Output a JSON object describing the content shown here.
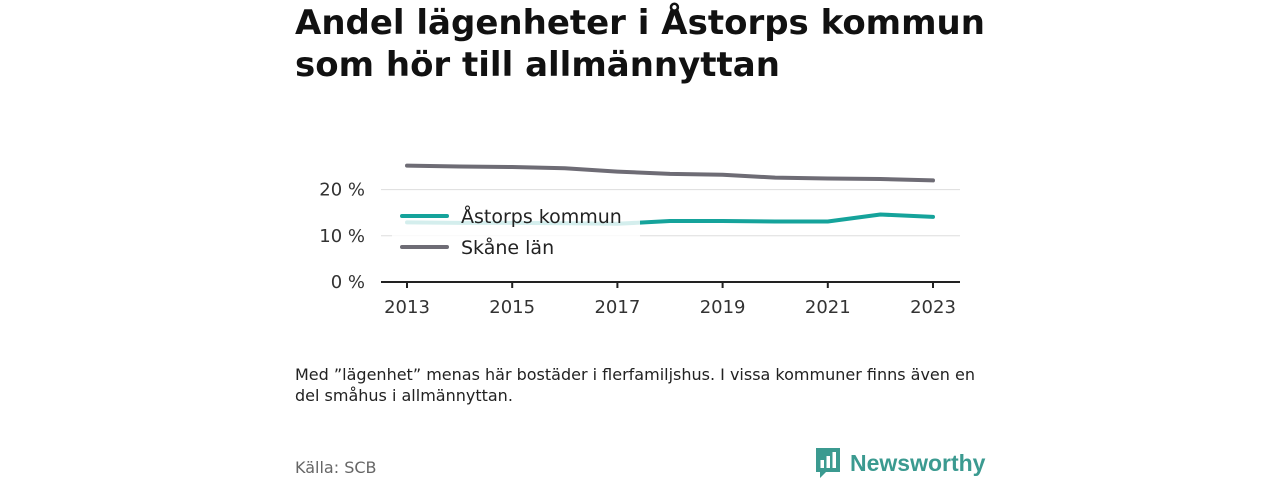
{
  "title": "Andel lägenheter i Åstorps kommun som hör till allmännyttan",
  "note": "Med ”lägenhet” menas här bostäder i flerfamiljshus. I vissa kommuner finns även en del småhus i allmännyttan.",
  "source": "Källa: SCB",
  "brand": {
    "name": "Newsworthy",
    "icon": "bar-chart-speech-bubble-icon",
    "color": "#3b9a90"
  },
  "chart_data": {
    "type": "line",
    "x": [
      2013,
      2014,
      2015,
      2016,
      2017,
      2018,
      2019,
      2020,
      2021,
      2022,
      2023
    ],
    "x_tick_labels": [
      "2013",
      "2015",
      "2017",
      "2019",
      "2021",
      "2023"
    ],
    "y_tick_labels": [
      "0 %",
      "10 %",
      "20 %"
    ],
    "ylim": [
      0,
      25
    ],
    "grid": true,
    "legend_position": "inside-left",
    "series": [
      {
        "name": "Åstorps kommun",
        "color": "#15a39b",
        "values": [
          12.9,
          12.8,
          12.8,
          12.7,
          12.6,
          13.2,
          13.2,
          13.1,
          13.1,
          14.6,
          14.1
        ]
      },
      {
        "name": "Skåne län",
        "color": "#6e6c75",
        "values": [
          25.2,
          25.0,
          24.9,
          24.6,
          23.9,
          23.4,
          23.2,
          22.6,
          22.4,
          22.3,
          22.0
        ]
      }
    ]
  }
}
